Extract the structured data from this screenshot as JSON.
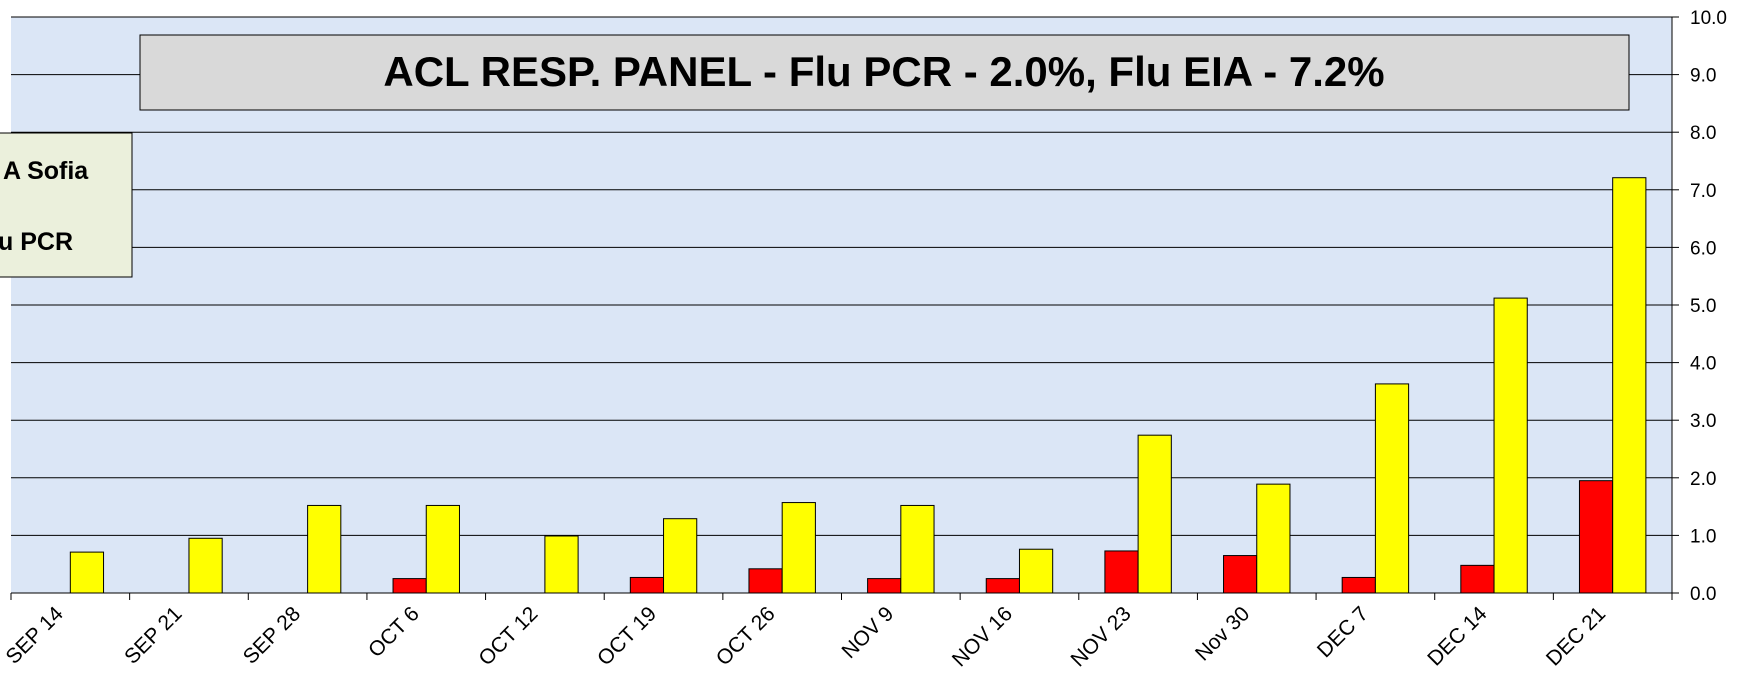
{
  "chart_data": {
    "type": "bar",
    "title": "ACL RESP. PANEL -  Flu PCR - 2.0%, Flu EIA - 7.2%",
    "categories": [
      "SEP 14",
      "SEP 21",
      "SEP 28",
      "OCT 6",
      "OCT 12",
      "OCT 19",
      "OCT 26",
      "NOV 9",
      "NOV 16",
      "NOV 23",
      "Nov 30",
      "DEC 7",
      "DEC 14",
      "DEC 21"
    ],
    "series": [
      {
        "name": "u PCR",
        "color": "#ff0000",
        "values": [
          0,
          0,
          0,
          0.25,
          0,
          0.27,
          0.42,
          0.25,
          0.25,
          0.73,
          0.65,
          0.27,
          0.48,
          1.95
        ]
      },
      {
        "name": "A Sofia",
        "color": "#ffff00",
        "values": [
          0.71,
          0.95,
          1.52,
          1.52,
          0.99,
          1.29,
          1.57,
          1.52,
          0.76,
          2.74,
          1.89,
          3.63,
          5.12,
          7.21
        ]
      }
    ],
    "ylim": [
      0,
      10
    ],
    "yticks": [
      {
        "value": 0,
        "label": "0.0"
      },
      {
        "value": 1,
        "label": "1.0"
      },
      {
        "value": 2,
        "label": "2.0"
      },
      {
        "value": 3,
        "label": "3.0"
      },
      {
        "value": 4,
        "label": "4.0"
      },
      {
        "value": 5,
        "label": "5.0"
      },
      {
        "value": 6,
        "label": "6.0"
      },
      {
        "value": 7,
        "label": "7.0"
      },
      {
        "value": 8,
        "label": "8.0"
      },
      {
        "value": 9,
        "label": "9.0"
      },
      {
        "value": 10,
        "label": "10.0"
      }
    ],
    "grid": true
  }
}
